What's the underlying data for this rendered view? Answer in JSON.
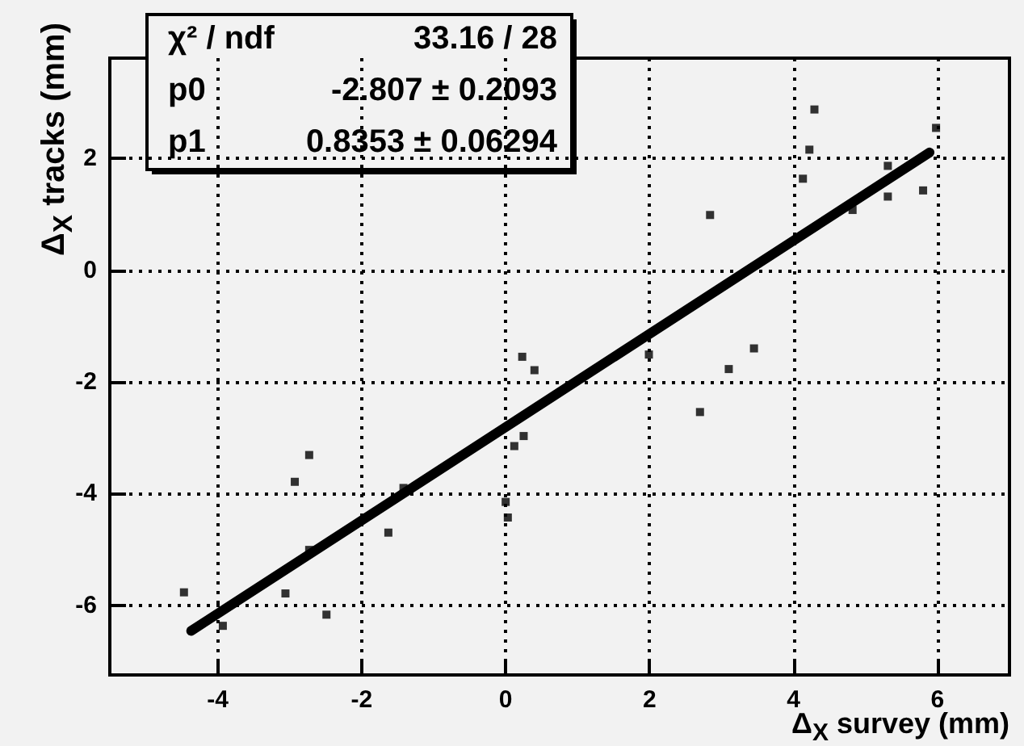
{
  "chart_data": {
    "type": "scatter",
    "xlabel": "Δ$_{X}$ survey (mm)",
    "ylabel": "Δ$_{X}$ tracks (mm)",
    "xlim": [
      -5.5,
      7
    ],
    "xticks": [
      -4,
      -2,
      0,
      2,
      4,
      6
    ],
    "ylim": [
      -7.25,
      3.8
    ],
    "yticks": [
      -6,
      -4,
      -2,
      0,
      2
    ],
    "grid": true,
    "marker": "square",
    "annotations": [
      "χ² / ndf",
      "33.16 / 28",
      "p0",
      "-2.807 ± 0.2093",
      "p1",
      "0.8353 ± 0.06294"
    ],
    "series": [
      {
        "color": "#000000",
        "x": [
          -4.47,
          -3.93,
          -3.06,
          -2.93,
          -2.73,
          -2.73,
          -2.49,
          -1.63,
          -1.42,
          0.0,
          0.03,
          0.12,
          0.25,
          0.23,
          0.4,
          1.99,
          2.7,
          3.1,
          3.45,
          2.84,
          4.13,
          4.22,
          4.29,
          4.82,
          5.31,
          5.31,
          5.8,
          5.98
        ],
        "values": [
          -5.77,
          -6.37,
          -5.79,
          -3.79,
          -3.31,
          -5.01,
          -6.17,
          -4.7,
          -3.9,
          -4.15,
          -4.43,
          -3.15,
          -2.97,
          -1.55,
          -1.79,
          -1.51,
          -2.54,
          -1.77,
          -1.4,
          0.99,
          1.64,
          2.16,
          2.88,
          1.08,
          1.87,
          1.32,
          1.43,
          2.55
        ]
      },
      {
        "type": "line",
        "color": "#000000",
        "marker": "none",
        "x": [
          -4.37,
          5.89
        ],
        "values": [
          -6.46,
          2.11
        ]
      }
    ]
  }
}
